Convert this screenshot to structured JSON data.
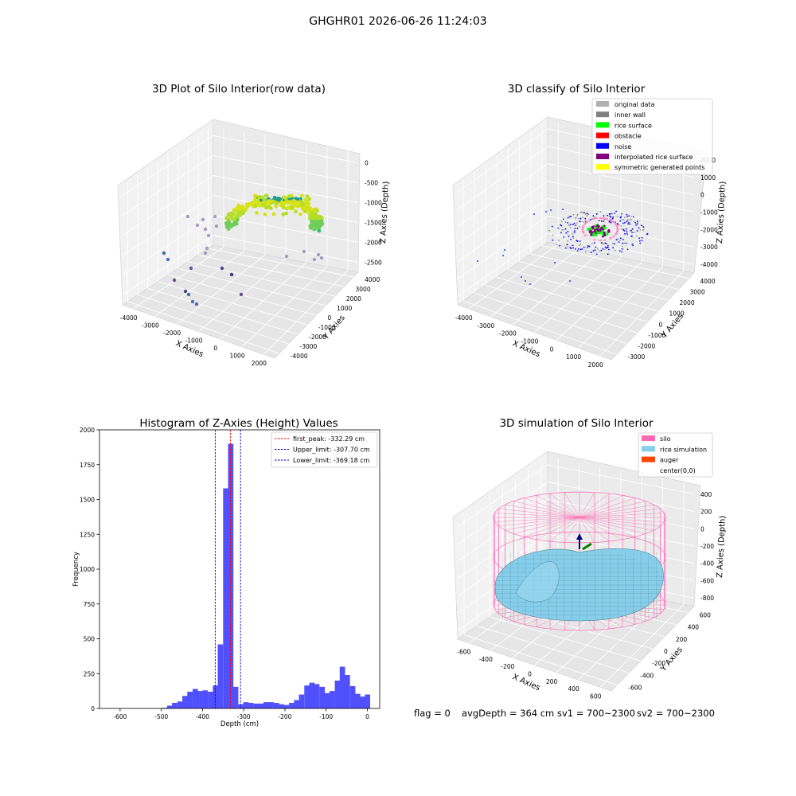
{
  "figure": {
    "suptitle": "GHGHR01 2026-06-26 11:24:03",
    "status_line": {
      "flag": "flag = 0",
      "avg_depth": "avgDepth = 364 cm",
      "sv1": "sv1 = 700~2300",
      "sv2": "sv2 = 700~2300"
    }
  },
  "colors": {
    "hist_bar": "#5050ff",
    "peak_line": "#ff0000",
    "limit_line": "#0000cc",
    "silo": "#ff69b4",
    "rice_sim": "#87ceeb",
    "auger": "#ff4500"
  },
  "chart_data": [
    {
      "id": "raw",
      "type": "scatter",
      "projection": "3d",
      "title": "3D Plot of Silo Interior(row data)",
      "xlabel": "X Axies",
      "ylabel": "Y Axies",
      "zlabel": "Z Axies (Depth)",
      "xlim": [
        -4500,
        2300
      ],
      "ylim": [
        -4200,
        4400
      ],
      "zlim": [
        -2700,
        100
      ],
      "xticks": [
        "-4000",
        "-3000",
        "-2000",
        "-1000",
        "0",
        "1000",
        "2000"
      ],
      "yticks": [
        "-4000",
        "-3000",
        "-2000",
        "-1000",
        "0",
        "1000",
        "2000",
        "3000",
        "4000"
      ],
      "zticks": [
        "0",
        "-500",
        "-1000",
        "-1500",
        "-2000",
        "-2500"
      ],
      "point_summary": "partial ring of points near depth -1100 to -1900 colored by depth (viridis), plus sparse outliers down to -2600"
    },
    {
      "id": "classify",
      "type": "scatter",
      "projection": "3d",
      "title": "3D classify of Silo Interior",
      "xlabel": "X Axies",
      "ylabel": "Y Axies",
      "zlabel": "Z Axies (Depth)",
      "xlim": [
        -4500,
        2300
      ],
      "ylim": [
        -3300,
        4200
      ],
      "zlim": [
        -4600,
        2200
      ],
      "xticks": [
        "-4000",
        "-3000",
        "-2000",
        "-1000",
        "0",
        "1000",
        "2000"
      ],
      "yticks": [
        "-3000",
        "-2000",
        "-1000",
        "0",
        "1000",
        "2000",
        "3000",
        "4000"
      ],
      "zticks": [
        "2000",
        "1000",
        "0",
        "-1000",
        "-2000",
        "-3000",
        "-4000"
      ],
      "legend_position": "upper-right",
      "legend": [
        {
          "label": "original data",
          "color": "#b0b0b0"
        },
        {
          "label": "inner wall",
          "color": "#808080"
        },
        {
          "label": "rice surface",
          "color": "#00ff00"
        },
        {
          "label": "obstacle",
          "color": "#ff0000"
        },
        {
          "label": "noise",
          "color": "#0000ff"
        },
        {
          "label": "interpolated rice surface",
          "color": "#800080"
        },
        {
          "label": "symmetric generated points",
          "color": "#ffff00"
        }
      ]
    },
    {
      "id": "histogram",
      "type": "bar",
      "title": "Histogram of Z-Axies (Height) Values",
      "xlabel": "Depth (cm)",
      "ylabel": "Frequency",
      "xlim": [
        -650,
        30
      ],
      "ylim": [
        0,
        2000
      ],
      "xticks": [
        -600,
        -500,
        -400,
        -300,
        -200,
        -100,
        0
      ],
      "yticks": [
        0,
        250,
        500,
        750,
        1000,
        1250,
        1500,
        1750,
        2000
      ],
      "bin_width": 12.3,
      "bins_start": [
        -498,
        -486,
        -474,
        -461,
        -449,
        -437,
        -424,
        -412,
        -400,
        -387,
        -375,
        -363,
        -350,
        -338,
        -326,
        -313,
        -301,
        -289,
        -276,
        -264,
        -252,
        -240,
        -227,
        -215,
        -203,
        -190,
        -178,
        -166,
        -153,
        -141,
        -129,
        -116,
        -104,
        -92,
        -79,
        -67,
        -55,
        -42,
        -30,
        -18,
        -6
      ],
      "values": [
        5,
        20,
        40,
        50,
        90,
        120,
        140,
        125,
        130,
        120,
        165,
        460,
        1580,
        1900,
        155,
        30,
        45,
        40,
        35,
        35,
        45,
        45,
        40,
        30,
        25,
        40,
        60,
        100,
        165,
        185,
        175,
        155,
        110,
        125,
        200,
        300,
        240,
        160,
        105,
        85,
        100
      ],
      "vlines": [
        {
          "x": -332.29,
          "label": "first_peak: -332.29 cm",
          "color": "#ff0000"
        },
        {
          "x": -307.7,
          "label": "Upper_limit: -307.70 cm",
          "color": "#0000cc"
        },
        {
          "x": -369.18,
          "label": "Lower_limit: -369.18 cm",
          "color": "#0000cc"
        }
      ],
      "legend_position": "upper-right"
    },
    {
      "id": "simulation",
      "type": "surface",
      "projection": "3d",
      "title": "3D simulation of Silo Interior",
      "xlabel": "X Axies",
      "ylabel": "Y Axies",
      "zlabel": "Z Axies (Depth)",
      "xlim": [
        -700,
        700
      ],
      "ylim": [
        -700,
        700
      ],
      "zlim": [
        -900,
        500
      ],
      "xticks": [
        "-600",
        "-400",
        "-200",
        "0",
        "200",
        "400",
        "600"
      ],
      "yticks": [
        "-600",
        "-400",
        "-200",
        "0",
        "200",
        "400",
        "600"
      ],
      "zticks": [
        "400",
        "200",
        "0",
        "-200",
        "-400",
        "-600",
        "-800"
      ],
      "legend_position": "upper-right",
      "legend": [
        {
          "label": "silo",
          "color": "#ff69b4"
        },
        {
          "label": "rice simulation",
          "color": "#87ceeb"
        },
        {
          "label": "auger",
          "color": "#ff4500"
        },
        {
          "label": "center(0,0)",
          "color": ""
        }
      ]
    }
  ]
}
